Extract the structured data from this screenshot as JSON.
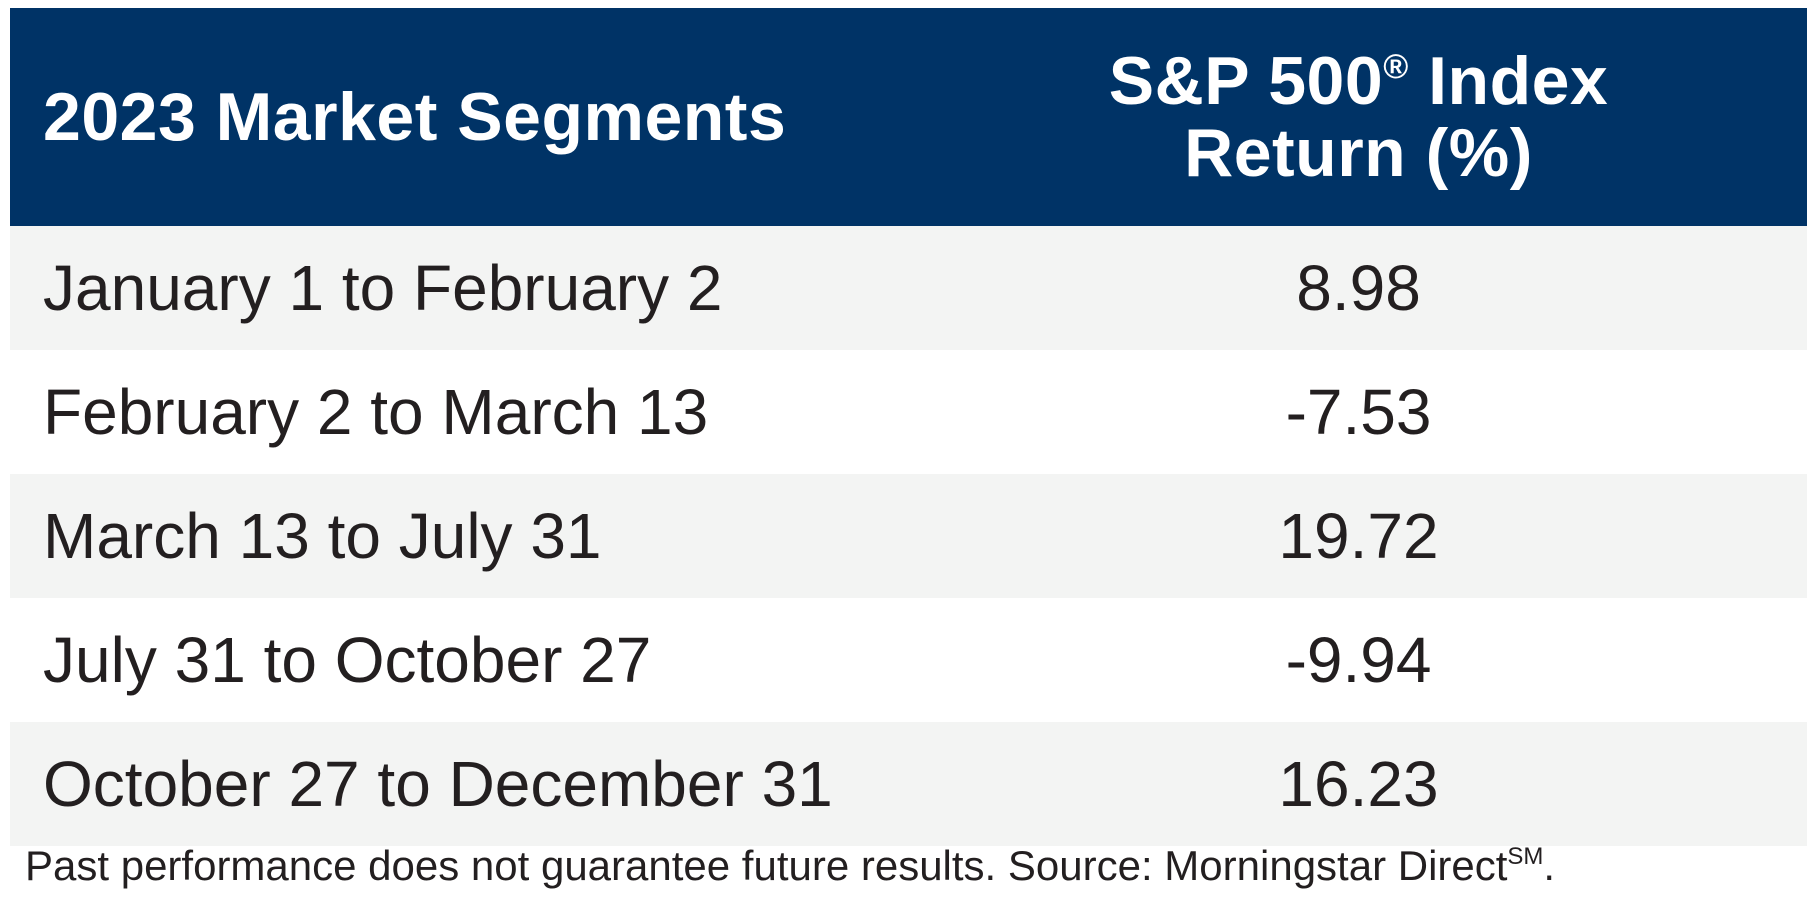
{
  "chart_data": {
    "type": "table",
    "columns": [
      "2023 Market Segments",
      "S&P 500® Index Return (%)"
    ],
    "header": {
      "col1": "2023 Market Segments",
      "col2_line1": "S&P 500",
      "col2_registered": "®",
      "col2_line1_end": " Index",
      "col2_line2": "Return (%)"
    },
    "rows": [
      {
        "segment": "January 1 to February 2",
        "return": "8.98"
      },
      {
        "segment": "February 2 to March 13",
        "return": "-7.53"
      },
      {
        "segment": "March 13 to July 31",
        "return": "19.72"
      },
      {
        "segment": "July 31 to October 27",
        "return": "-9.94"
      },
      {
        "segment": "October 27 to December 31",
        "return": "16.23"
      }
    ]
  },
  "footnote": {
    "text": "Past performance does not guarantee future results. Source: Morningstar Direct",
    "superscript": "SM",
    "end": "."
  },
  "colors": {
    "header_bg": "#003366",
    "header_text": "#ffffff",
    "row_alt_bg": "#f3f4f3",
    "row_bg": "#ffffff",
    "text": "#231f20"
  }
}
